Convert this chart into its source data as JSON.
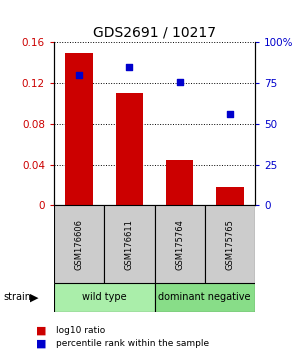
{
  "title": "GDS2691 / 10217",
  "samples": [
    "GSM176606",
    "GSM176611",
    "GSM175764",
    "GSM175765"
  ],
  "log10_ratio": [
    0.15,
    0.11,
    0.045,
    0.018
  ],
  "percentile_rank": [
    80,
    85,
    76,
    56
  ],
  "groups": [
    {
      "name": "wild type",
      "indices": [
        0,
        1
      ],
      "color": "#aaeeaa"
    },
    {
      "name": "dominant negative",
      "indices": [
        2,
        3
      ],
      "color": "#88dd88"
    }
  ],
  "group_label": "strain",
  "left_ylim": [
    0,
    0.16
  ],
  "right_ylim": [
    0,
    100
  ],
  "left_yticks": [
    0,
    0.04,
    0.08,
    0.12,
    0.16
  ],
  "right_yticks": [
    0,
    25,
    50,
    75,
    100
  ],
  "right_yticklabels": [
    "0",
    "25",
    "50",
    "75",
    "100%"
  ],
  "bar_color": "#cc0000",
  "dot_color": "#0000cc",
  "bar_width": 0.55,
  "legend_items": [
    {
      "color": "#cc0000",
      "label": "log10 ratio"
    },
    {
      "color": "#0000cc",
      "label": "percentile rank within the sample"
    }
  ],
  "bg_color": "#ffffff",
  "sample_box_color": "#cccccc"
}
